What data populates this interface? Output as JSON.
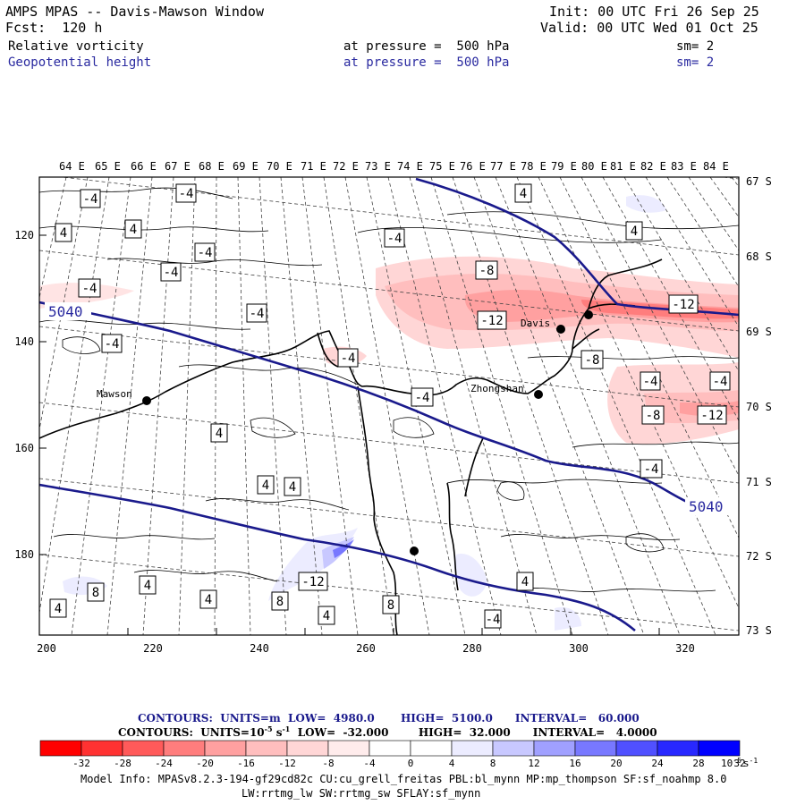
{
  "header": {
    "title": "AMPS MPAS -- Davis-Mawson Window",
    "init": "Init: 00 UTC Fri 26 Sep 25",
    "fcst": "Fcst:  120 h",
    "valid": "Valid: 00 UTC Wed 01 Oct 25",
    "field1": "Relative vorticity",
    "field1_level": "at pressure =  500 hPa",
    "field1_sm": "sm= 2",
    "field2": "Geopotential height",
    "field2_level": "at pressure =  500 hPa",
    "field2_sm": "sm= 2"
  },
  "colors": {
    "height_contour": "#1a1a8c",
    "label_blue": "#2a2aa0",
    "coast": "#000000"
  },
  "map": {
    "top_lon_labels": [
      "64 E",
      "65 E",
      "66 E",
      "67 E",
      "68 E",
      "69 E",
      "70 E",
      "71 E",
      "72 E",
      "73 E",
      "74 E",
      "75 E",
      "76 E",
      "77 E",
      "78 E",
      "79 E",
      "80 E",
      "81 E",
      "82 E",
      "83 E",
      "84 E"
    ],
    "right_lat_labels": [
      "67 S",
      "68 S",
      "69 S",
      "70 S",
      "71 S",
      "72 S",
      "73 S"
    ],
    "left_y_labels": [
      "120",
      "140",
      "160",
      "180"
    ],
    "bottom_x_labels": [
      "200",
      "220",
      "240",
      "260",
      "280",
      "300",
      "320"
    ],
    "height_labels": [
      "5040",
      "5040"
    ],
    "stations": [
      "Mawson",
      "Davis",
      "Zhongshan"
    ],
    "vorticity_labels": [
      "-4",
      "-4",
      "-4",
      "-4",
      "-4",
      "4",
      "4",
      "-4",
      "-4",
      "4",
      "-4",
      "-8",
      "-12",
      "-8",
      "-12",
      "-4",
      "-4",
      "-8",
      "-12",
      "4",
      "-4",
      "4",
      "-4",
      "4",
      "4",
      "-12",
      "4",
      "8",
      "4",
      "4",
      "8",
      "4",
      "8",
      "4",
      "-4",
      "-4"
    ]
  },
  "legend": {
    "contours1": "CONTOURS:  UNITS=m  LOW=  4980.0       HIGH=  5100.0      INTERVAL=   60.000",
    "contours2_pre": "CONTOURS:  UNITS=10",
    "contours2_post": "s",
    "contours2_rest": "  LOW=  -32.000        HIGH=  32.000      INTERVAL=   4.0000",
    "exp_m5": "-5",
    "exp_m1": "-1",
    "ticks": [
      "-32",
      "-28",
      "-24",
      "-20",
      "-16",
      "-12",
      "-8",
      "-4",
      "0",
      "4",
      "8",
      "12",
      "16",
      "20",
      "24",
      "28",
      "32"
    ],
    "units": "10",
    "units_exp": "-5",
    "units_s": "s",
    "units_s_exp": "-1",
    "colors": [
      "#ff0000",
      "#ff3232",
      "#ff5a5a",
      "#ff7d7d",
      "#ffa0a0",
      "#ffbebe",
      "#ffd6d6",
      "#ffecec",
      "#ffffff",
      "#ffffff",
      "#ececff",
      "#c8c8ff",
      "#a0a0ff",
      "#7878ff",
      "#5050ff",
      "#2828ff",
      "#0000ff"
    ]
  },
  "model_info": {
    "line1": "Model Info: MPASv8.2.3-194-gf29cd82c CU:cu_grell_freitas PBL:bl_mynn MP:mp_thompson SF:sf_noahmp 8.0",
    "line2": "LW:rrtmg_lw SW:rrtmg_sw SFLAY:sf_mynn"
  }
}
